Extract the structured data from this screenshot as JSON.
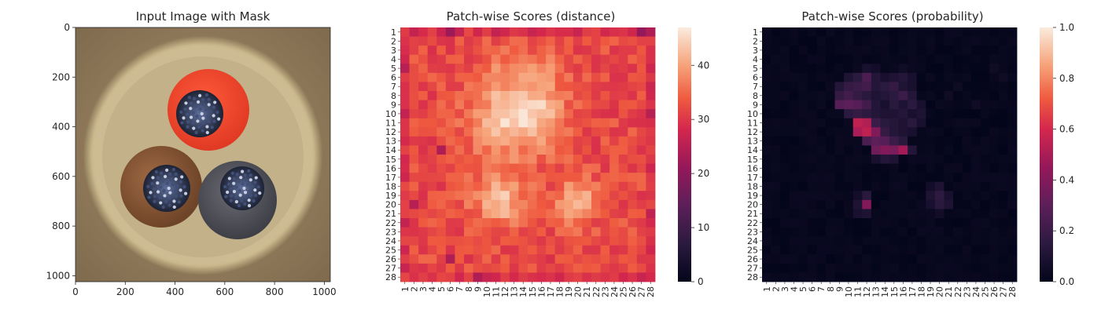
{
  "panels": [
    {
      "title": "Input Image with Mask",
      "x_ticks": [
        "0",
        "200",
        "400",
        "600",
        "800",
        "1000"
      ],
      "y_ticks": [
        "0",
        "200",
        "400",
        "600",
        "800",
        "1000"
      ]
    },
    {
      "title": "Patch-wise Scores (distance)",
      "colorbar_ticks": [
        "0",
        "10",
        "20",
        "30",
        "40"
      ]
    },
    {
      "title": "Patch-wise Scores (probability)",
      "colorbar_ticks": [
        "0.0",
        "0.2",
        "0.4",
        "0.6",
        "0.8",
        "1.0"
      ]
    }
  ],
  "chart_data": [
    {
      "type": "image",
      "title": "Input Image with Mask",
      "xlim": [
        0,
        1024
      ],
      "ylim": [
        1024,
        0
      ],
      "x_ticks": [
        0,
        200,
        400,
        600,
        800,
        1000
      ],
      "y_ticks": [
        0,
        200,
        400,
        600,
        800,
        1000
      ],
      "description_objects": [
        {
          "name": "red cable",
          "color": "#f0442c",
          "center": [
            540,
            330
          ],
          "radius": 165
        },
        {
          "name": "brown cable",
          "color": "#8a5a3a",
          "center": [
            350,
            660
          ],
          "radius": 165
        },
        {
          "name": "grey cable",
          "color": "#55565e",
          "center": [
            660,
            680
          ],
          "radius": 165
        }
      ]
    },
    {
      "type": "heatmap",
      "title": "Patch-wise Scores (distance)",
      "rows": 28,
      "cols": 28,
      "x_labels": [
        "1",
        "2",
        "3",
        "4",
        "5",
        "6",
        "7",
        "8",
        "9",
        "10",
        "11",
        "12",
        "13",
        "14",
        "15",
        "16",
        "17",
        "18",
        "19",
        "20",
        "21",
        "22",
        "23",
        "24",
        "25",
        "26",
        "27",
        "28"
      ],
      "y_labels": [
        "1",
        "2",
        "3",
        "4",
        "5",
        "6",
        "7",
        "8",
        "9",
        "10",
        "11",
        "12",
        "13",
        "14",
        "15",
        "16",
        "17",
        "18",
        "19",
        "20",
        "21",
        "22",
        "23",
        "24",
        "25",
        "26",
        "27",
        "28"
      ],
      "vmin": 0,
      "vmax": 47,
      "base": 32,
      "blobs": [
        {
          "row": 10.5,
          "col": 13.0,
          "sigma_r": 2.8,
          "sigma_c": 3.2,
          "amp": 13
        },
        {
          "row": 8.5,
          "col": 15.5,
          "sigma_r": 2.0,
          "sigma_c": 2.2,
          "amp": 4
        },
        {
          "row": 19.5,
          "col": 11.5,
          "sigma_r": 2.0,
          "sigma_c": 2.0,
          "amp": 11
        },
        {
          "row": 19.5,
          "col": 20.0,
          "sigma_r": 1.8,
          "sigma_c": 1.6,
          "amp": 10
        },
        {
          "row": 5.0,
          "col": 14.0,
          "sigma_r": 1.5,
          "sigma_c": 3.5,
          "amp": 4
        }
      ],
      "low_cells": [
        [
          1,
          6,
          22
        ],
        [
          1,
          27,
          21
        ],
        [
          1,
          28,
          24
        ],
        [
          5,
          1,
          25
        ],
        [
          14,
          5,
          24
        ],
        [
          28,
          9,
          24
        ],
        [
          20,
          2,
          25
        ],
        [
          26,
          6,
          24
        ],
        [
          10,
          28,
          25
        ]
      ]
    },
    {
      "type": "heatmap",
      "title": "Patch-wise Scores (probability)",
      "rows": 28,
      "cols": 28,
      "x_labels": [
        "1",
        "2",
        "3",
        "4",
        "5",
        "6",
        "7",
        "8",
        "9",
        "10",
        "11",
        "12",
        "13",
        "14",
        "15",
        "16",
        "17",
        "18",
        "19",
        "20",
        "21",
        "22",
        "23",
        "24",
        "25",
        "26",
        "27",
        "28"
      ],
      "y_labels": [
        "1",
        "2",
        "3",
        "4",
        "5",
        "6",
        "7",
        "8",
        "9",
        "10",
        "11",
        "12",
        "13",
        "14",
        "15",
        "16",
        "17",
        "18",
        "19",
        "20",
        "21",
        "22",
        "23",
        "24",
        "25",
        "26",
        "27",
        "28"
      ],
      "vmin": 0.0,
      "vmax": 1.0,
      "base": 0.02,
      "cells": [
        [
          5,
          12,
          0.08
        ],
        [
          5,
          13,
          0.06
        ],
        [
          5,
          16,
          0.05
        ],
        [
          6,
          10,
          0.1
        ],
        [
          6,
          11,
          0.15
        ],
        [
          6,
          12,
          0.25
        ],
        [
          6,
          13,
          0.12
        ],
        [
          6,
          14,
          0.08
        ],
        [
          6,
          15,
          0.1
        ],
        [
          6,
          16,
          0.12
        ],
        [
          6,
          17,
          0.08
        ],
        [
          7,
          9,
          0.12
        ],
        [
          7,
          10,
          0.18
        ],
        [
          7,
          11,
          0.2
        ],
        [
          7,
          12,
          0.22
        ],
        [
          7,
          13,
          0.12
        ],
        [
          7,
          14,
          0.15
        ],
        [
          7,
          15,
          0.18
        ],
        [
          7,
          16,
          0.1
        ],
        [
          7,
          17,
          0.08
        ],
        [
          8,
          9,
          0.18
        ],
        [
          8,
          10,
          0.22
        ],
        [
          8,
          11,
          0.18
        ],
        [
          8,
          12,
          0.14
        ],
        [
          8,
          13,
          0.1
        ],
        [
          8,
          14,
          0.12
        ],
        [
          8,
          15,
          0.15
        ],
        [
          8,
          16,
          0.2
        ],
        [
          8,
          17,
          0.12
        ],
        [
          9,
          9,
          0.28
        ],
        [
          9,
          10,
          0.3
        ],
        [
          9,
          11,
          0.28
        ],
        [
          9,
          12,
          0.22
        ],
        [
          9,
          13,
          0.12
        ],
        [
          9,
          14,
          0.08
        ],
        [
          9,
          15,
          0.14
        ],
        [
          9,
          16,
          0.1
        ],
        [
          9,
          17,
          0.15
        ],
        [
          9,
          18,
          0.08
        ],
        [
          10,
          10,
          0.15
        ],
        [
          10,
          11,
          0.18
        ],
        [
          10,
          12,
          0.16
        ],
        [
          10,
          13,
          0.12
        ],
        [
          10,
          14,
          0.1
        ],
        [
          10,
          15,
          0.1
        ],
        [
          10,
          16,
          0.12
        ],
        [
          10,
          17,
          0.08
        ],
        [
          10,
          18,
          0.1
        ],
        [
          11,
          11,
          0.55
        ],
        [
          11,
          12,
          0.52
        ],
        [
          11,
          13,
          0.2
        ],
        [
          11,
          14,
          0.14
        ],
        [
          11,
          15,
          0.12
        ],
        [
          11,
          16,
          0.1
        ],
        [
          11,
          17,
          0.14
        ],
        [
          11,
          18,
          0.08
        ],
        [
          12,
          11,
          0.5
        ],
        [
          12,
          12,
          0.55
        ],
        [
          12,
          13,
          0.4
        ],
        [
          12,
          14,
          0.18
        ],
        [
          12,
          15,
          0.12
        ],
        [
          12,
          16,
          0.1
        ],
        [
          12,
          17,
          0.08
        ],
        [
          13,
          12,
          0.25
        ],
        [
          13,
          13,
          0.3
        ],
        [
          13,
          14,
          0.28
        ],
        [
          13,
          15,
          0.2
        ],
        [
          13,
          16,
          0.14
        ],
        [
          14,
          13,
          0.35
        ],
        [
          14,
          14,
          0.4
        ],
        [
          14,
          15,
          0.38
        ],
        [
          14,
          16,
          0.48
        ],
        [
          14,
          17,
          0.12
        ],
        [
          15,
          13,
          0.08
        ],
        [
          15,
          14,
          0.12
        ],
        [
          15,
          15,
          0.1
        ],
        [
          18,
          19,
          0.06
        ],
        [
          18,
          20,
          0.1
        ],
        [
          19,
          11,
          0.06
        ],
        [
          19,
          12,
          0.14
        ],
        [
          19,
          19,
          0.1
        ],
        [
          19,
          20,
          0.16
        ],
        [
          19,
          21,
          0.08
        ],
        [
          20,
          11,
          0.1
        ],
        [
          20,
          12,
          0.4
        ],
        [
          20,
          19,
          0.08
        ],
        [
          20,
          20,
          0.14
        ],
        [
          20,
          21,
          0.1
        ],
        [
          21,
          11,
          0.08
        ],
        [
          21,
          12,
          0.1
        ],
        [
          21,
          20,
          0.06
        ],
        [
          7,
          22,
          0.04
        ],
        [
          8,
          21,
          0.05
        ],
        [
          9,
          24,
          0.05
        ],
        [
          6,
          27,
          0.05
        ],
        [
          5,
          26,
          0.05
        ]
      ]
    }
  ]
}
